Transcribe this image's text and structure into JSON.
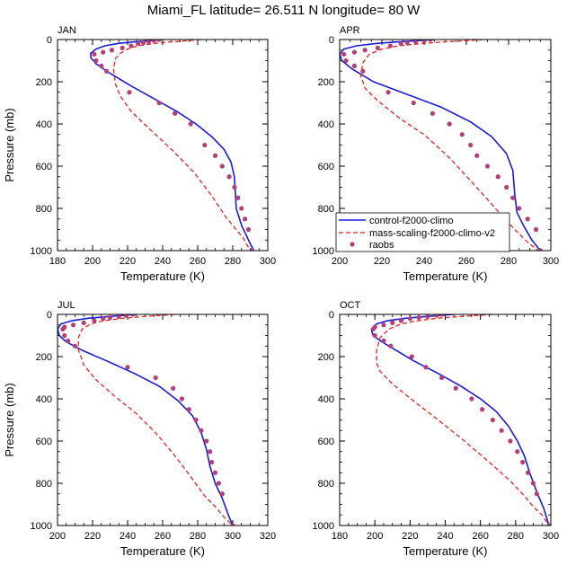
{
  "title": "Miami_FL  latitude= 26.511 N longitude= 80 W",
  "colors": {
    "control": "#1a1ad6",
    "mass": "#e8221c",
    "raobs": "#b0407a"
  },
  "legend": {
    "control": "control-f2000-climo",
    "mass": "mass-scaling-f2000-climo-v2",
    "raobs": "raobs"
  },
  "chart_data": [
    {
      "type": "line",
      "label": "JAN",
      "xlabel": "Temperature (K)",
      "ylabel": "Pressure (mb)",
      "xlim": [
        180,
        300
      ],
      "ylim": [
        1000,
        0
      ],
      "y_inverted": true,
      "xticks": [
        180,
        200,
        220,
        240,
        260,
        280,
        300
      ],
      "yticks": [
        0,
        200,
        400,
        600,
        800,
        1000
      ],
      "series": [
        {
          "name": "control-f2000-climo",
          "style": "solid-line",
          "x": [
            240,
            228,
            215,
            207,
            202,
            199,
            199,
            202,
            210,
            222,
            235,
            248,
            259,
            268,
            275,
            279,
            281,
            282,
            285,
            289,
            292
          ],
          "y": [
            0,
            8,
            18,
            30,
            45,
            65,
            85,
            115,
            160,
            220,
            280,
            340,
            400,
            460,
            520,
            580,
            650,
            800,
            880,
            950,
            1000
          ]
        },
        {
          "name": "mass-scaling-f2000-climo-v2",
          "style": "dashed-line",
          "x": [
            262,
            250,
            236,
            226,
            220,
            216,
            213,
            212,
            213,
            216,
            222,
            232,
            245,
            258,
            268,
            276,
            281,
            286,
            290
          ],
          "y": [
            0,
            8,
            18,
            30,
            45,
            65,
            90,
            140,
            210,
            270,
            340,
            420,
            520,
            630,
            740,
            840,
            890,
            940,
            1000
          ]
        },
        {
          "name": "raobs",
          "style": "markers",
          "x": [
            238,
            235,
            232,
            229,
            226,
            222,
            217,
            211,
            206,
            201,
            202,
            205,
            208,
            221,
            238,
            247,
            256,
            264,
            270,
            274,
            278,
            281,
            283,
            285,
            287,
            289,
            291
          ],
          "y": [
            0,
            5,
            10,
            15,
            20,
            30,
            40,
            50,
            60,
            70,
            100,
            125,
            150,
            250,
            300,
            350,
            400,
            500,
            550,
            600,
            650,
            700,
            750,
            800,
            850,
            900,
            1000
          ]
        }
      ]
    },
    {
      "type": "line",
      "label": "APR",
      "xlabel": "Temperature (K)",
      "ylabel": "",
      "xlim": [
        200,
        300
      ],
      "ylim": [
        1000,
        0
      ],
      "y_inverted": true,
      "xticks": [
        200,
        220,
        240,
        260,
        280,
        300
      ],
      "yticks": [
        0,
        200,
        400,
        600,
        800,
        1000
      ],
      "series": [
        {
          "name": "control-f2000-climo",
          "style": "solid-line",
          "x": [
            245,
            232,
            218,
            208,
            202,
            200,
            201,
            206,
            216,
            232,
            248,
            262,
            272,
            279,
            282,
            283,
            284,
            287,
            291,
            295
          ],
          "y": [
            0,
            8,
            18,
            30,
            45,
            70,
            100,
            140,
            200,
            260,
            320,
            390,
            460,
            540,
            620,
            740,
            820,
            880,
            950,
            1000
          ]
        },
        {
          "name": "mass-scaling-f2000-climo-v2",
          "style": "dashed-line",
          "x": [
            268,
            255,
            240,
            228,
            220,
            214,
            211,
            210,
            212,
            218,
            228,
            240,
            252,
            263,
            272,
            279,
            284,
            289,
            294
          ],
          "y": [
            0,
            8,
            18,
            30,
            45,
            70,
            110,
            170,
            230,
            290,
            370,
            450,
            560,
            680,
            780,
            860,
            910,
            960,
            1000
          ]
        },
        {
          "name": "raobs",
          "style": "markers",
          "x": [
            243,
            240,
            236,
            232,
            229,
            224,
            218,
            212,
            207,
            202,
            203,
            207,
            211,
            223,
            235,
            244,
            252,
            258,
            262,
            265,
            270,
            275,
            279,
            282,
            285,
            289,
            293,
            295
          ],
          "y": [
            0,
            5,
            10,
            15,
            20,
            30,
            40,
            50,
            60,
            70,
            100,
            125,
            150,
            250,
            300,
            350,
            400,
            450,
            500,
            550,
            600,
            650,
            700,
            750,
            800,
            850,
            900,
            1000
          ]
        }
      ]
    },
    {
      "type": "line",
      "label": "JUL",
      "xlabel": "Temperature (K)",
      "ylabel": "Pressure (mb)",
      "xlim": [
        200,
        320
      ],
      "ylim": [
        1000,
        0
      ],
      "y_inverted": true,
      "xticks": [
        200,
        220,
        240,
        260,
        280,
        300,
        320
      ],
      "yticks": [
        0,
        200,
        400,
        600,
        800,
        1000
      ],
      "series": [
        {
          "name": "control-f2000-climo",
          "style": "solid-line",
          "x": [
            245,
            232,
            218,
            208,
            202,
            200,
            201,
            205,
            214,
            228,
            244,
            258,
            269,
            277,
            282,
            285,
            287,
            290,
            294,
            297,
            300
          ],
          "y": [
            0,
            8,
            18,
            30,
            45,
            70,
            100,
            130,
            170,
            220,
            280,
            340,
            410,
            480,
            560,
            640,
            720,
            800,
            870,
            940,
            1000
          ]
        },
        {
          "name": "mass-scaling-f2000-climo-v2",
          "style": "dashed-line",
          "x": [
            267,
            253,
            238,
            226,
            219,
            214,
            212,
            212,
            215,
            222,
            233,
            245,
            257,
            268,
            277,
            284,
            290,
            295,
            300
          ],
          "y": [
            0,
            8,
            18,
            30,
            45,
            70,
            110,
            170,
            240,
            310,
            390,
            470,
            570,
            680,
            780,
            860,
            910,
            960,
            1000
          ]
        },
        {
          "name": "raobs",
          "style": "markers",
          "x": [
            243,
            239,
            235,
            230,
            226,
            221,
            215,
            209,
            204,
            203,
            204,
            206,
            210,
            240,
            256,
            266,
            271,
            275,
            279,
            282,
            285,
            287,
            288,
            290,
            292,
            294,
            300
          ],
          "y": [
            0,
            5,
            10,
            15,
            20,
            30,
            40,
            50,
            60,
            70,
            100,
            125,
            150,
            250,
            300,
            350,
            400,
            450,
            500,
            550,
            600,
            650,
            700,
            750,
            800,
            850,
            1000
          ]
        }
      ]
    },
    {
      "type": "line",
      "label": "OCT",
      "xlabel": "Temperature (K)",
      "ylabel": "",
      "xlim": [
        180,
        300
      ],
      "ylim": [
        1000,
        0
      ],
      "y_inverted": true,
      "xticks": [
        180,
        200,
        220,
        240,
        260,
        280,
        300
      ],
      "yticks": [
        0,
        200,
        400,
        600,
        800,
        1000
      ],
      "series": [
        {
          "name": "control-f2000-climo",
          "style": "solid-line",
          "x": [
            245,
            232,
            218,
            207,
            201,
            198,
            199,
            204,
            212,
            222,
            236,
            249,
            260,
            269,
            276,
            281,
            285,
            288,
            292,
            296,
            299
          ],
          "y": [
            0,
            8,
            18,
            30,
            45,
            70,
            100,
            130,
            170,
            220,
            280,
            340,
            400,
            460,
            530,
            600,
            670,
            750,
            840,
            920,
            1000
          ]
        },
        {
          "name": "mass-scaling-f2000-climo-v2",
          "style": "dashed-line",
          "x": [
            267,
            252,
            236,
            224,
            215,
            208,
            203,
            201,
            201,
            203,
            210,
            222,
            236,
            251,
            265,
            277,
            285,
            290,
            295,
            299
          ],
          "y": [
            0,
            8,
            18,
            30,
            45,
            70,
            110,
            170,
            230,
            270,
            330,
            410,
            500,
            600,
            700,
            790,
            860,
            910,
            950,
            1000
          ]
        },
        {
          "name": "raobs",
          "style": "markers",
          "x": [
            238,
            235,
            230,
            225,
            220,
            215,
            210,
            205,
            200,
            199,
            200,
            205,
            209,
            221,
            229,
            238,
            246,
            255,
            261,
            267,
            272,
            277,
            281,
            284,
            287,
            290,
            292,
            299
          ],
          "y": [
            0,
            5,
            10,
            15,
            20,
            30,
            40,
            50,
            60,
            70,
            100,
            125,
            150,
            200,
            250,
            300,
            350,
            400,
            450,
            500,
            550,
            600,
            650,
            700,
            750,
            800,
            850,
            1000
          ]
        }
      ]
    }
  ]
}
